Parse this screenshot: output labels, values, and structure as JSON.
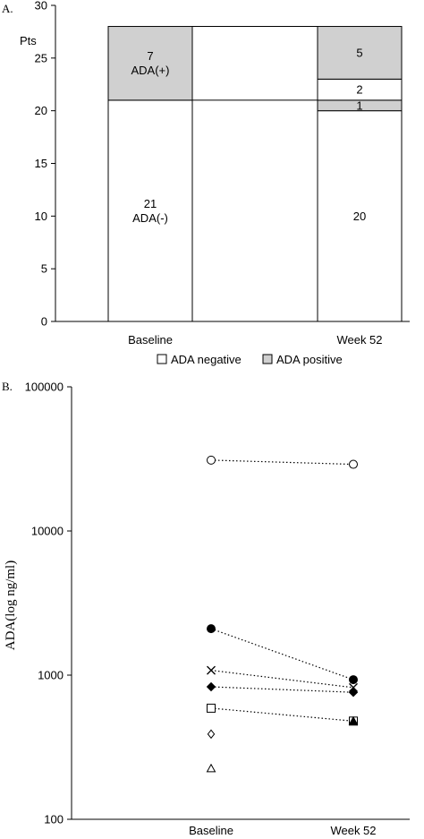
{
  "chart_data": [
    {
      "type": "bar",
      "panel_label": "A.",
      "ylabel": "Pts",
      "ylim": [
        0,
        30
      ],
      "yticks": [
        0,
        5,
        10,
        15,
        20,
        25,
        30
      ],
      "categories": [
        "Baseline",
        "Week 52"
      ],
      "stacked": true,
      "grid": false,
      "legend": {
        "position": "bottom",
        "entries": [
          {
            "label": "ADA negative",
            "color": "#ffffff"
          },
          {
            "label": "ADA positive",
            "color": "#d0d0d0"
          }
        ]
      },
      "stacks": [
        {
          "category": "Baseline",
          "segments": [
            {
              "value": 21,
              "status": "ADA negative",
              "label_lines": [
                "21",
                "ADA(-)"
              ],
              "color": "#ffffff"
            },
            {
              "value": 7,
              "status": "ADA positive",
              "label_lines": [
                "7",
                "ADA(+)"
              ],
              "color": "#d0d0d0"
            }
          ]
        },
        {
          "category": "Week 52",
          "segments": [
            {
              "value": 20,
              "status": "ADA negative",
              "label_lines": [
                "20"
              ],
              "color": "#ffffff"
            },
            {
              "value": 1,
              "status": "ADA positive",
              "label_lines": [
                "1"
              ],
              "color": "#d0d0d0"
            },
            {
              "value": 2,
              "status": "ADA negative",
              "label_lines": [
                "2"
              ],
              "color": "#ffffff"
            },
            {
              "value": 5,
              "status": "ADA positive",
              "label_lines": [
                "5"
              ],
              "color": "#d0d0d0"
            }
          ]
        }
      ],
      "connector_levels": [
        21,
        28
      ]
    },
    {
      "type": "scatter",
      "panel_label": "B.",
      "ylabel": "ADA(log ng/ml)",
      "yscale": "log",
      "ylim": [
        100,
        100000
      ],
      "yticks": [
        100,
        1000,
        10000,
        100000
      ],
      "categories": [
        "Baseline",
        "Week 52"
      ],
      "grid": false,
      "series": [
        {
          "marker": "circle-open",
          "values": [
            31000,
            29000
          ],
          "connected": true
        },
        {
          "marker": "circle-filled",
          "values": [
            2100,
            930
          ],
          "connected": true
        },
        {
          "marker": "x",
          "values": [
            1080,
            820
          ],
          "connected": true
        },
        {
          "marker": "diamond-filled",
          "values": [
            830,
            760
          ],
          "connected": true
        },
        {
          "marker": "square-open",
          "values": [
            590,
            480
          ],
          "connected": true
        },
        {
          "marker": "diamond-open",
          "values": [
            390,
            null
          ],
          "connected": false
        },
        {
          "marker": "triangle-open",
          "values": [
            225,
            null
          ],
          "connected": false
        },
        {
          "marker": "triangle-filled",
          "values": [
            null,
            480
          ],
          "connected": false
        }
      ]
    }
  ]
}
